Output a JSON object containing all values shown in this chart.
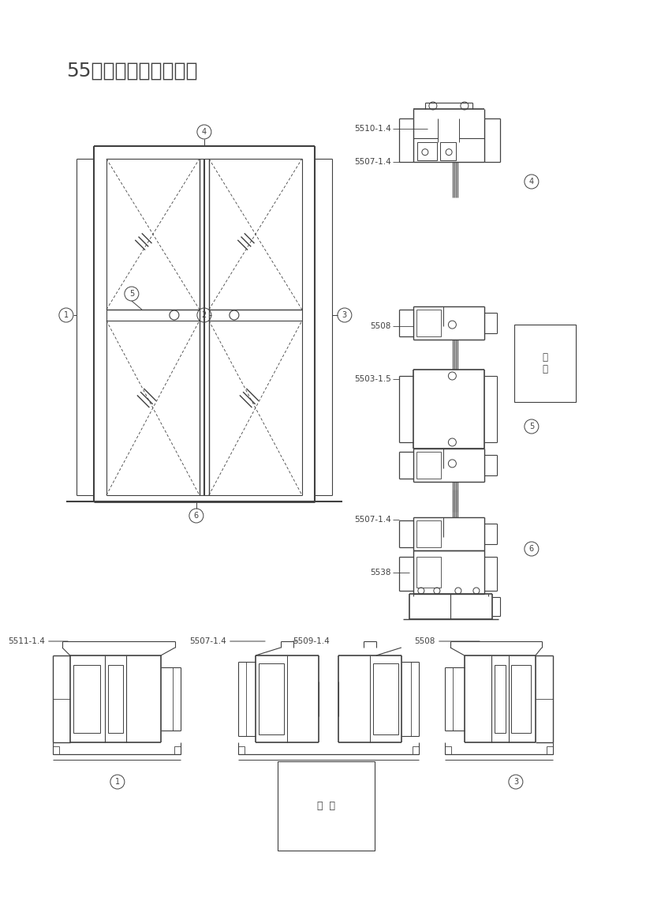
{
  "title": "55系列外平开门结构图",
  "bg_color": "#ffffff",
  "line_color": "#404040",
  "lw": 0.8,
  "labels": {
    "5510_14": "5510-1.4",
    "5507_14": "5507-1.4",
    "5508": "5508",
    "5503_15": "5503-1.5",
    "5538": "5538",
    "5511_14": "5511-1.4",
    "5509_14": "5509-1.4",
    "shizu": "室外",
    "shizu2": "室  外"
  }
}
